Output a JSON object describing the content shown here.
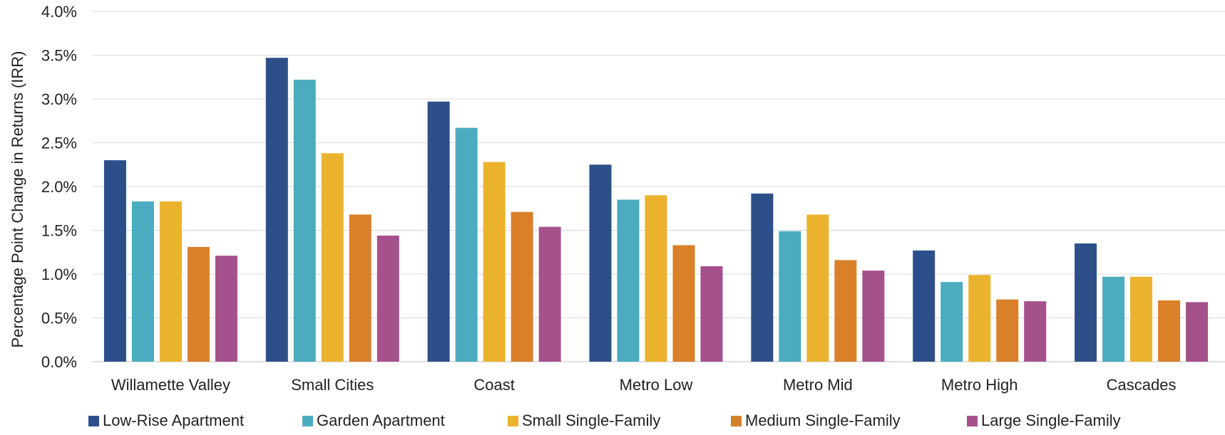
{
  "chart_data": {
    "type": "bar",
    "ylabel": "Percentage Point Change in Returns (IRR)",
    "xlabel": "",
    "ylim": [
      0,
      4.0
    ],
    "yticks": [
      "0.0%",
      "0.5%",
      "1.0%",
      "1.5%",
      "2.0%",
      "2.5%",
      "3.0%",
      "3.5%",
      "4.0%"
    ],
    "grid": true,
    "legend_position": "bottom",
    "categories": [
      "Willamette Valley",
      "Small Cities",
      "Coast",
      "Metro Low",
      "Metro Mid",
      "Metro High",
      "Cascades"
    ],
    "series": [
      {
        "name": "Low-Rise Apartment",
        "color": "#2c4f8a",
        "values": [
          2.3,
          3.47,
          2.97,
          2.25,
          1.92,
          1.27,
          1.35
        ]
      },
      {
        "name": "Garden Apartment",
        "color": "#4bacc0",
        "values": [
          1.83,
          3.22,
          2.67,
          1.85,
          1.49,
          0.91,
          0.97
        ]
      },
      {
        "name": "Small Single-Family",
        "color": "#ebb22e",
        "values": [
          1.83,
          2.38,
          2.28,
          1.9,
          1.68,
          0.99,
          0.97
        ]
      },
      {
        "name": "Medium Single-Family",
        "color": "#d98029",
        "values": [
          1.31,
          1.68,
          1.71,
          1.33,
          1.16,
          0.71,
          0.7
        ]
      },
      {
        "name": "Large Single-Family",
        "color": "#a5518c",
        "values": [
          1.21,
          1.44,
          1.54,
          1.09,
          1.04,
          0.69,
          0.68
        ]
      }
    ]
  }
}
